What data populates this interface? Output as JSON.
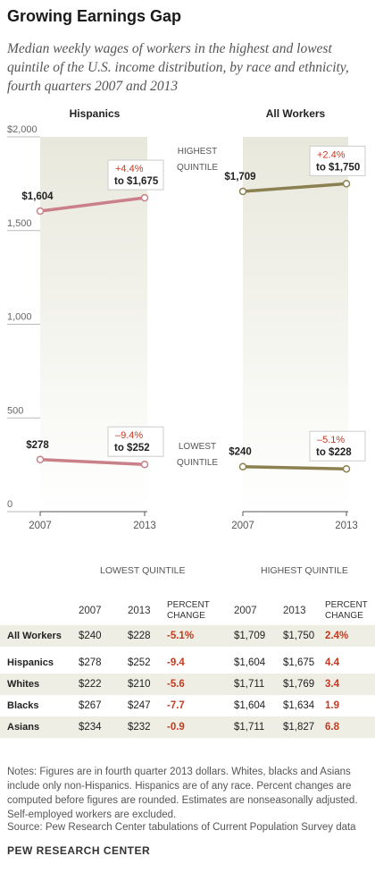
{
  "title": "Growing Earnings Gap",
  "subtitle": "Median weekly wages of workers in the highest and lowest quintile of the U.S. income distribution, by race and ethnicity, fourth quarters 2007 and 2013",
  "chart_data": {
    "type": "line",
    "panels": [
      {
        "title": "Hispanics",
        "color": "#c98088",
        "series": [
          {
            "name": "HIGHEST QUINTILE",
            "x": [
              "2007",
              "2013"
            ],
            "values": [
              1604,
              1675
            ],
            "start_label": "$1,604",
            "change_label": "+4.4%",
            "end_label": "to $1,675"
          },
          {
            "name": "LOWEST QUINTILE",
            "x": [
              "2007",
              "2013"
            ],
            "values": [
              278,
              252
            ],
            "start_label": "$278",
            "change_label": "–9.4%",
            "end_label": "to $252"
          }
        ]
      },
      {
        "title": "All Workers",
        "color": "#8b8150",
        "series": [
          {
            "name": "HIGHEST QUINTILE",
            "x": [
              "2007",
              "2013"
            ],
            "values": [
              1709,
              1750
            ],
            "start_label": "$1,709",
            "change_label": "+2.4%",
            "end_label": "to $1,750"
          },
          {
            "name": "LOWEST QUINTILE",
            "x": [
              "2007",
              "2013"
            ],
            "values": [
              240,
              228
            ],
            "start_label": "$240",
            "change_label": "–5.1%",
            "end_label": "to $228"
          }
        ]
      }
    ],
    "ylim": [
      0,
      2000
    ],
    "yticks": [
      0,
      500,
      1000,
      1500,
      2000
    ],
    "ytick_labels": [
      "0",
      "500",
      "1,000",
      "1,500",
      "$2,000"
    ],
    "xtick_labels": [
      "2007",
      "2013"
    ],
    "middle_labels": [
      {
        "line1": "HIGHEST",
        "line2": "QUINTILE"
      },
      {
        "line1": "LOWEST",
        "line2": "QUINTILE"
      }
    ],
    "grid": false
  },
  "table": {
    "group_headers": [
      "LOWEST QUINTILE",
      "HIGHEST QUINTILE"
    ],
    "col_headers": [
      "2007",
      "2013",
      "PERCENT CHANGE",
      "2007",
      "2013",
      "PERCENT CHANGE"
    ],
    "rows": [
      {
        "label": "All Workers",
        "cells": [
          "$240",
          "$228",
          "-5.1%",
          "$1,709",
          "$1,750",
          "2.4%"
        ]
      },
      {
        "label": "Hispanics",
        "cells": [
          "$278",
          "$252",
          "-9.4",
          "$1,604",
          "$1,675",
          "4.4"
        ]
      },
      {
        "label": "Whites",
        "cells": [
          "$222",
          "$210",
          "-5.6",
          "$1,711",
          "$1,769",
          "3.4"
        ]
      },
      {
        "label": "Blacks",
        "cells": [
          "$267",
          "$247",
          "-7.7",
          "$1,604",
          "$1,634",
          "1.9"
        ]
      },
      {
        "label": "Asians",
        "cells": [
          "$234",
          "$232",
          "-0.9",
          "$1,711",
          "$1,827",
          "6.8"
        ]
      }
    ]
  },
  "notes": "Notes: Figures are in fourth quarter 2013 dollars. Whites, blacks and Asians include only non-Hispanics. Hispanics are of any race. Percent changes are computed before figures are rounded. Estimates are nonseasonally adjusted. Self-employed workers are excluded.",
  "source": "Source: Pew Research Center tabulations of Current Population Survey data",
  "org": "PEW RESEARCH CENTER"
}
